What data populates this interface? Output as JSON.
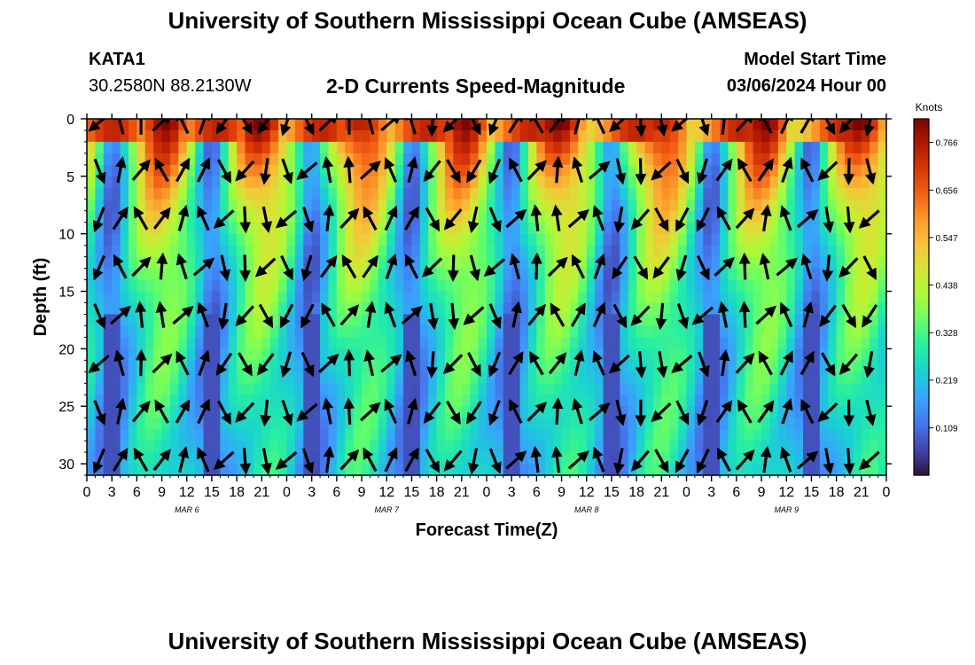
{
  "page": {
    "title_top": "University of Southern Mississippi Ocean Cube (AMSEAS)",
    "title_bottom": "University of Southern Mississippi Ocean Cube (AMSEAS)",
    "station": "KATA1",
    "coordinates": "30.2580N  88.2130W",
    "subtitle": "2-D Currents Speed-Magnitude",
    "model_start_label": "Model Start Time",
    "model_start_value": "03/06/2024 Hour 00"
  },
  "chart_data": {
    "type": "heatmap",
    "title": "2-D Currents Speed-Magnitude",
    "xlabel": "Forecast Time(Z)",
    "ylabel": "Depth (ft)",
    "x_hours_range": [
      0,
      96
    ],
    "y_range": [
      0,
      31
    ],
    "y_ticks": [
      0,
      5,
      10,
      15,
      20,
      25,
      30
    ],
    "x_tick_labels": [
      "0",
      "3",
      "6",
      "9",
      "12",
      "15",
      "18",
      "21",
      "0",
      "3",
      "6",
      "9",
      "12",
      "15",
      "18",
      "21",
      "0",
      "3",
      "6",
      "9",
      "12",
      "15",
      "18",
      "21",
      "0",
      "3",
      "6",
      "9",
      "12",
      "15",
      "18",
      "21",
      "0"
    ],
    "date_labels": [
      {
        "label": "MAR 6",
        "hour": 12
      },
      {
        "label": "MAR 7",
        "hour": 36
      },
      {
        "label": "MAR 8",
        "hour": 60
      },
      {
        "label": "MAR 9",
        "hour": 84
      }
    ],
    "colorbar": {
      "label": "Knots",
      "min": 0.0,
      "max": 0.82,
      "ticks": [
        0.109,
        0.219,
        0.328,
        0.438,
        0.547,
        0.656,
        0.766
      ],
      "colors": [
        "#30123b",
        "#4145ab",
        "#4675ed",
        "#39a2fc",
        "#1bcfd4",
        "#24eca6",
        "#61fc6c",
        "#a4fc3b",
        "#d1e834",
        "#f3c63a",
        "#fe9b2d",
        "#f36315",
        "#d93806",
        "#b11901",
        "#7a0403"
      ]
    },
    "vector_note": "arrows show current direction at each depth/time"
  }
}
